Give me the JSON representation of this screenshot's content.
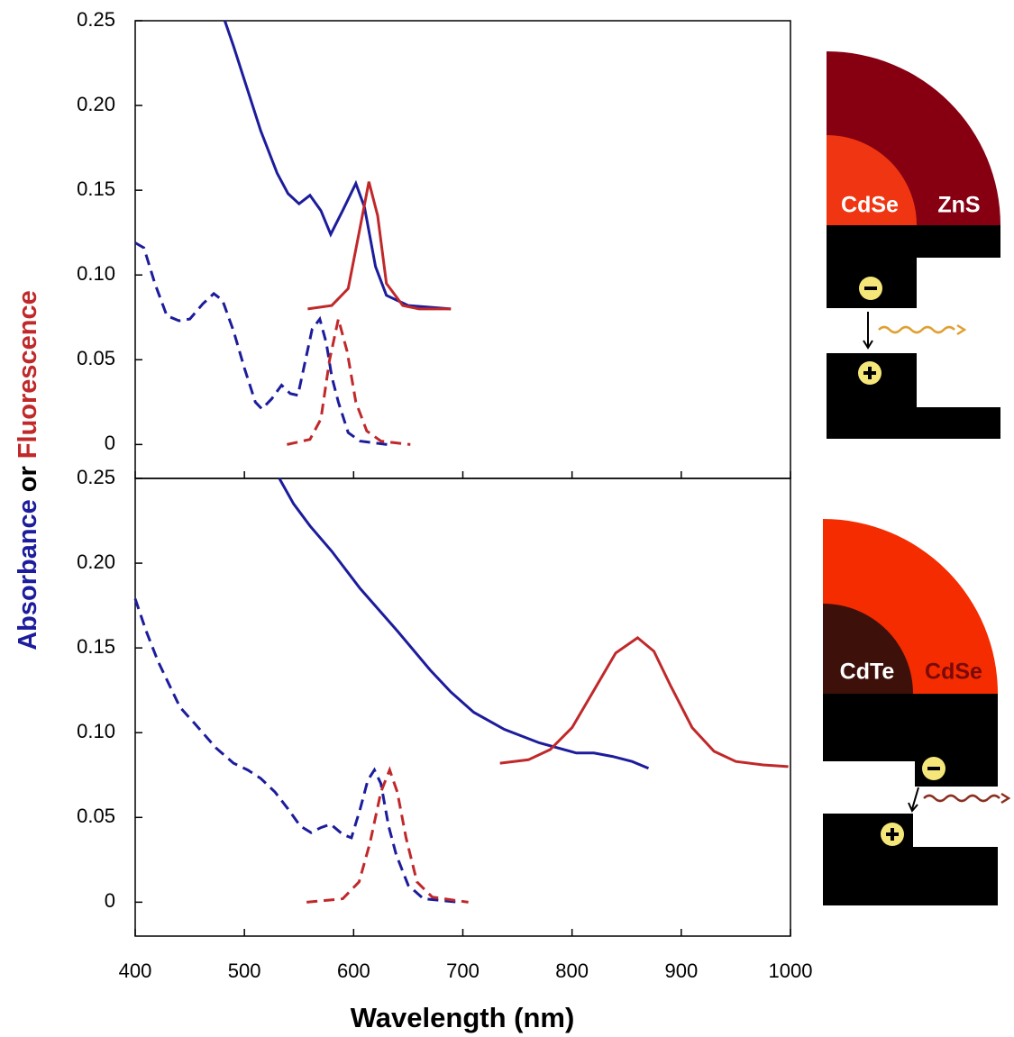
{
  "chart_data": [
    {
      "type": "line",
      "ylabel": [
        "Absorbance",
        "or",
        "Fluorescence"
      ],
      "xlim": [
        400,
        1000
      ],
      "xticks": [
        400,
        500,
        600,
        700,
        800,
        900,
        1000
      ],
      "ylim": [
        -0.02,
        0.25
      ],
      "yticks": [
        0,
        0.05,
        {
          "value": 0.1,
          "label": "0.10"
        },
        0.15,
        {
          "value": 0.2,
          "label": "0.20"
        },
        0.25
      ],
      "series": [
        {
          "color": "#1c1c9c",
          "dashed": false,
          "x": [
            482,
            490,
            500,
            515,
            530,
            540,
            550,
            560,
            570,
            579,
            590,
            602,
            610,
            620,
            630,
            650,
            689
          ],
          "values": [
            0.25,
            0.235,
            0.215,
            0.185,
            0.16,
            0.148,
            0.142,
            0.147,
            0.138,
            0.124,
            0.138,
            0.154,
            0.14,
            0.105,
            0.088,
            0.082,
            0.08
          ]
        },
        {
          "color": "#c0282a",
          "dashed": false,
          "x": [
            558,
            580,
            595,
            605,
            614,
            622,
            630,
            645,
            660,
            689
          ],
          "values": [
            0.08,
            0.082,
            0.092,
            0.125,
            0.155,
            0.135,
            0.095,
            0.082,
            0.08,
            0.08
          ]
        },
        {
          "color": "#1c1c9c",
          "dashed": true,
          "x": [
            400,
            408,
            418,
            429,
            440,
            450,
            462,
            472,
            480,
            490,
            500,
            510,
            516,
            525,
            534,
            542,
            549,
            556,
            562,
            569,
            575,
            580,
            586,
            595,
            606,
            631
          ],
          "values": [
            0.119,
            0.116,
            0.095,
            0.076,
            0.073,
            0.074,
            0.083,
            0.089,
            0.085,
            0.067,
            0.045,
            0.025,
            0.021,
            0.027,
            0.035,
            0.03,
            0.029,
            0.05,
            0.068,
            0.074,
            0.06,
            0.04,
            0.025,
            0.007,
            0.002,
            0
          ]
        },
        {
          "color": "#c0282a",
          "dashed": true,
          "x": [
            539,
            560,
            570,
            578,
            586,
            594,
            602,
            612,
            625,
            652
          ],
          "values": [
            0,
            0.003,
            0.015,
            0.05,
            0.074,
            0.055,
            0.025,
            0.008,
            0.002,
            0
          ]
        }
      ]
    },
    {
      "type": "line",
      "xlabel": "Wavelength (nm)",
      "xlim": [
        400,
        1000
      ],
      "xticks": [
        400,
        500,
        600,
        700,
        800,
        900,
        1000
      ],
      "ylim": [
        -0.02,
        0.25
      ],
      "yticks": [
        0,
        0.05,
        {
          "value": 0.1,
          "label": "0.10"
        },
        0.15,
        {
          "value": 0.2,
          "label": "0.20"
        },
        0.25
      ],
      "series": [
        {
          "color": "#1c1c9c",
          "dashed": false,
          "x": [
            532,
            545,
            560,
            580,
            606,
            640,
            670,
            689,
            710,
            738,
            770,
            804,
            820,
            837,
            855,
            870
          ],
          "values": [
            0.25,
            0.235,
            0.222,
            0.207,
            0.185,
            0.16,
            0.137,
            0.124,
            0.112,
            0.102,
            0.094,
            0.088,
            0.088,
            0.086,
            0.083,
            0.079
          ]
        },
        {
          "color": "#c0282a",
          "dashed": false,
          "x": [
            734,
            760,
            780,
            800,
            820,
            840,
            860,
            875,
            890,
            910,
            930,
            950,
            975,
            998
          ],
          "values": [
            0.082,
            0.084,
            0.09,
            0.103,
            0.125,
            0.147,
            0.156,
            0.148,
            0.128,
            0.103,
            0.089,
            0.083,
            0.081,
            0.08
          ]
        },
        {
          "color": "#1c1c9c",
          "dashed": true,
          "x": [
            400,
            410,
            421,
            441,
            455,
            474,
            490,
            503,
            515,
            528,
            540,
            551,
            561,
            570,
            579,
            590,
            598,
            606,
            613,
            619,
            625,
            632,
            639,
            650,
            664,
            697
          ],
          "values": [
            0.179,
            0.16,
            0.142,
            0.115,
            0.105,
            0.091,
            0.082,
            0.078,
            0.073,
            0.065,
            0.055,
            0.045,
            0.041,
            0.044,
            0.046,
            0.04,
            0.038,
            0.055,
            0.072,
            0.078,
            0.07,
            0.045,
            0.028,
            0.01,
            0.002,
            0
          ]
        },
        {
          "color": "#c0282a",
          "dashed": true,
          "x": [
            557,
            590,
            605,
            615,
            625,
            633,
            640,
            648,
            658,
            672,
            705
          ],
          "values": [
            0,
            0.002,
            0.012,
            0.035,
            0.065,
            0.078,
            0.065,
            0.038,
            0.012,
            0.003,
            0
          ]
        }
      ]
    }
  ],
  "diagrams": [
    {
      "labels": [
        "CdSe",
        "ZnS"
      ]
    },
    {
      "labels": [
        "CdTe",
        "CdSe"
      ]
    }
  ]
}
